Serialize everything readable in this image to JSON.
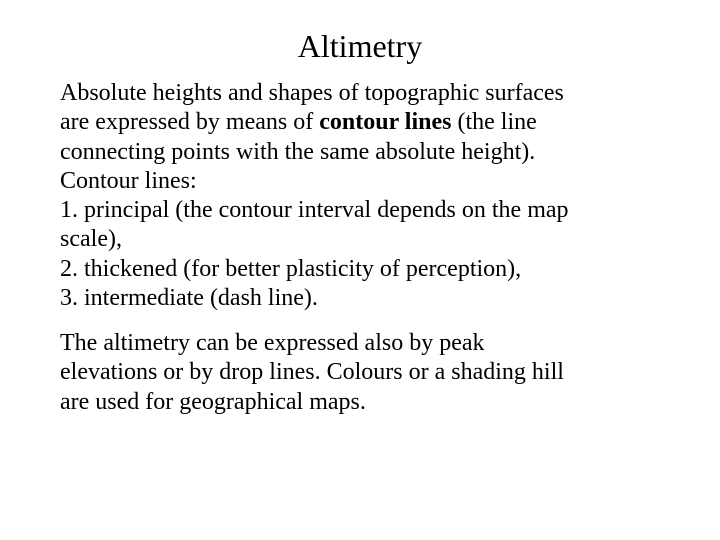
{
  "title": "Altimetry",
  "para1": {
    "l1a": "Absolute heights and shapes of topographic surfaces",
    "l2_pre": "are expressed by means of ",
    "l2_bold": "contour lines",
    "l2_post": " (the line",
    "l3": "connecting points with the same absolute height).",
    "l4": "Contour lines:",
    "l5": "1. principal (the contour interval depends on the map",
    "l6": "scale),",
    "l7": "2. thickened (for better plasticity of perception),",
    "l8": "3. intermediate (dash line)."
  },
  "para2": {
    "l1": "The altimetry can be expressed also by peak",
    "l2": "elevations or by drop lines. Colours or a shading hill",
    "l3": "are used for geographical maps."
  }
}
